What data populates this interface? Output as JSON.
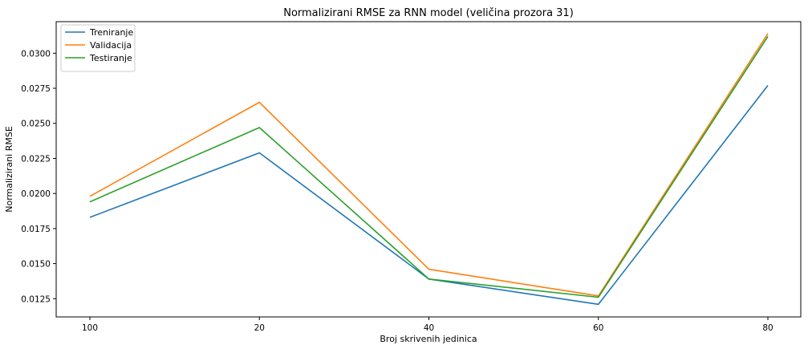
{
  "chart_data": {
    "type": "line",
    "title": "Normalizirani RMSE za RNN model (veličina prozora 31)",
    "xlabel": "Broj skrivenih jedinica",
    "ylabel": "Normalizirani RMSE",
    "categories": [
      "100",
      "20",
      "40",
      "60",
      "80"
    ],
    "ylim": [
      0.0112,
      0.03225
    ],
    "yticks": [
      "0.0125",
      "0.0150",
      "0.0175",
      "0.0200",
      "0.0225",
      "0.0250",
      "0.0275",
      "0.0300"
    ],
    "ytick_values": [
      0.0125,
      0.015,
      0.0175,
      0.02,
      0.0225,
      0.025,
      0.0275,
      0.03
    ],
    "legend_position": "upper-left",
    "grid": false,
    "series": [
      {
        "name": "Treniranje",
        "color": "#1f77b4",
        "values": [
          0.0183,
          0.0229,
          0.0139,
          0.0121,
          0.0277
        ]
      },
      {
        "name": "Validacija",
        "color": "#ff7f0e",
        "values": [
          0.0198,
          0.0265,
          0.0146,
          0.0127,
          0.0314
        ]
      },
      {
        "name": "Testiranje",
        "color": "#2ca02c",
        "values": [
          0.0194,
          0.0247,
          0.0139,
          0.0126,
          0.0312
        ]
      }
    ]
  }
}
